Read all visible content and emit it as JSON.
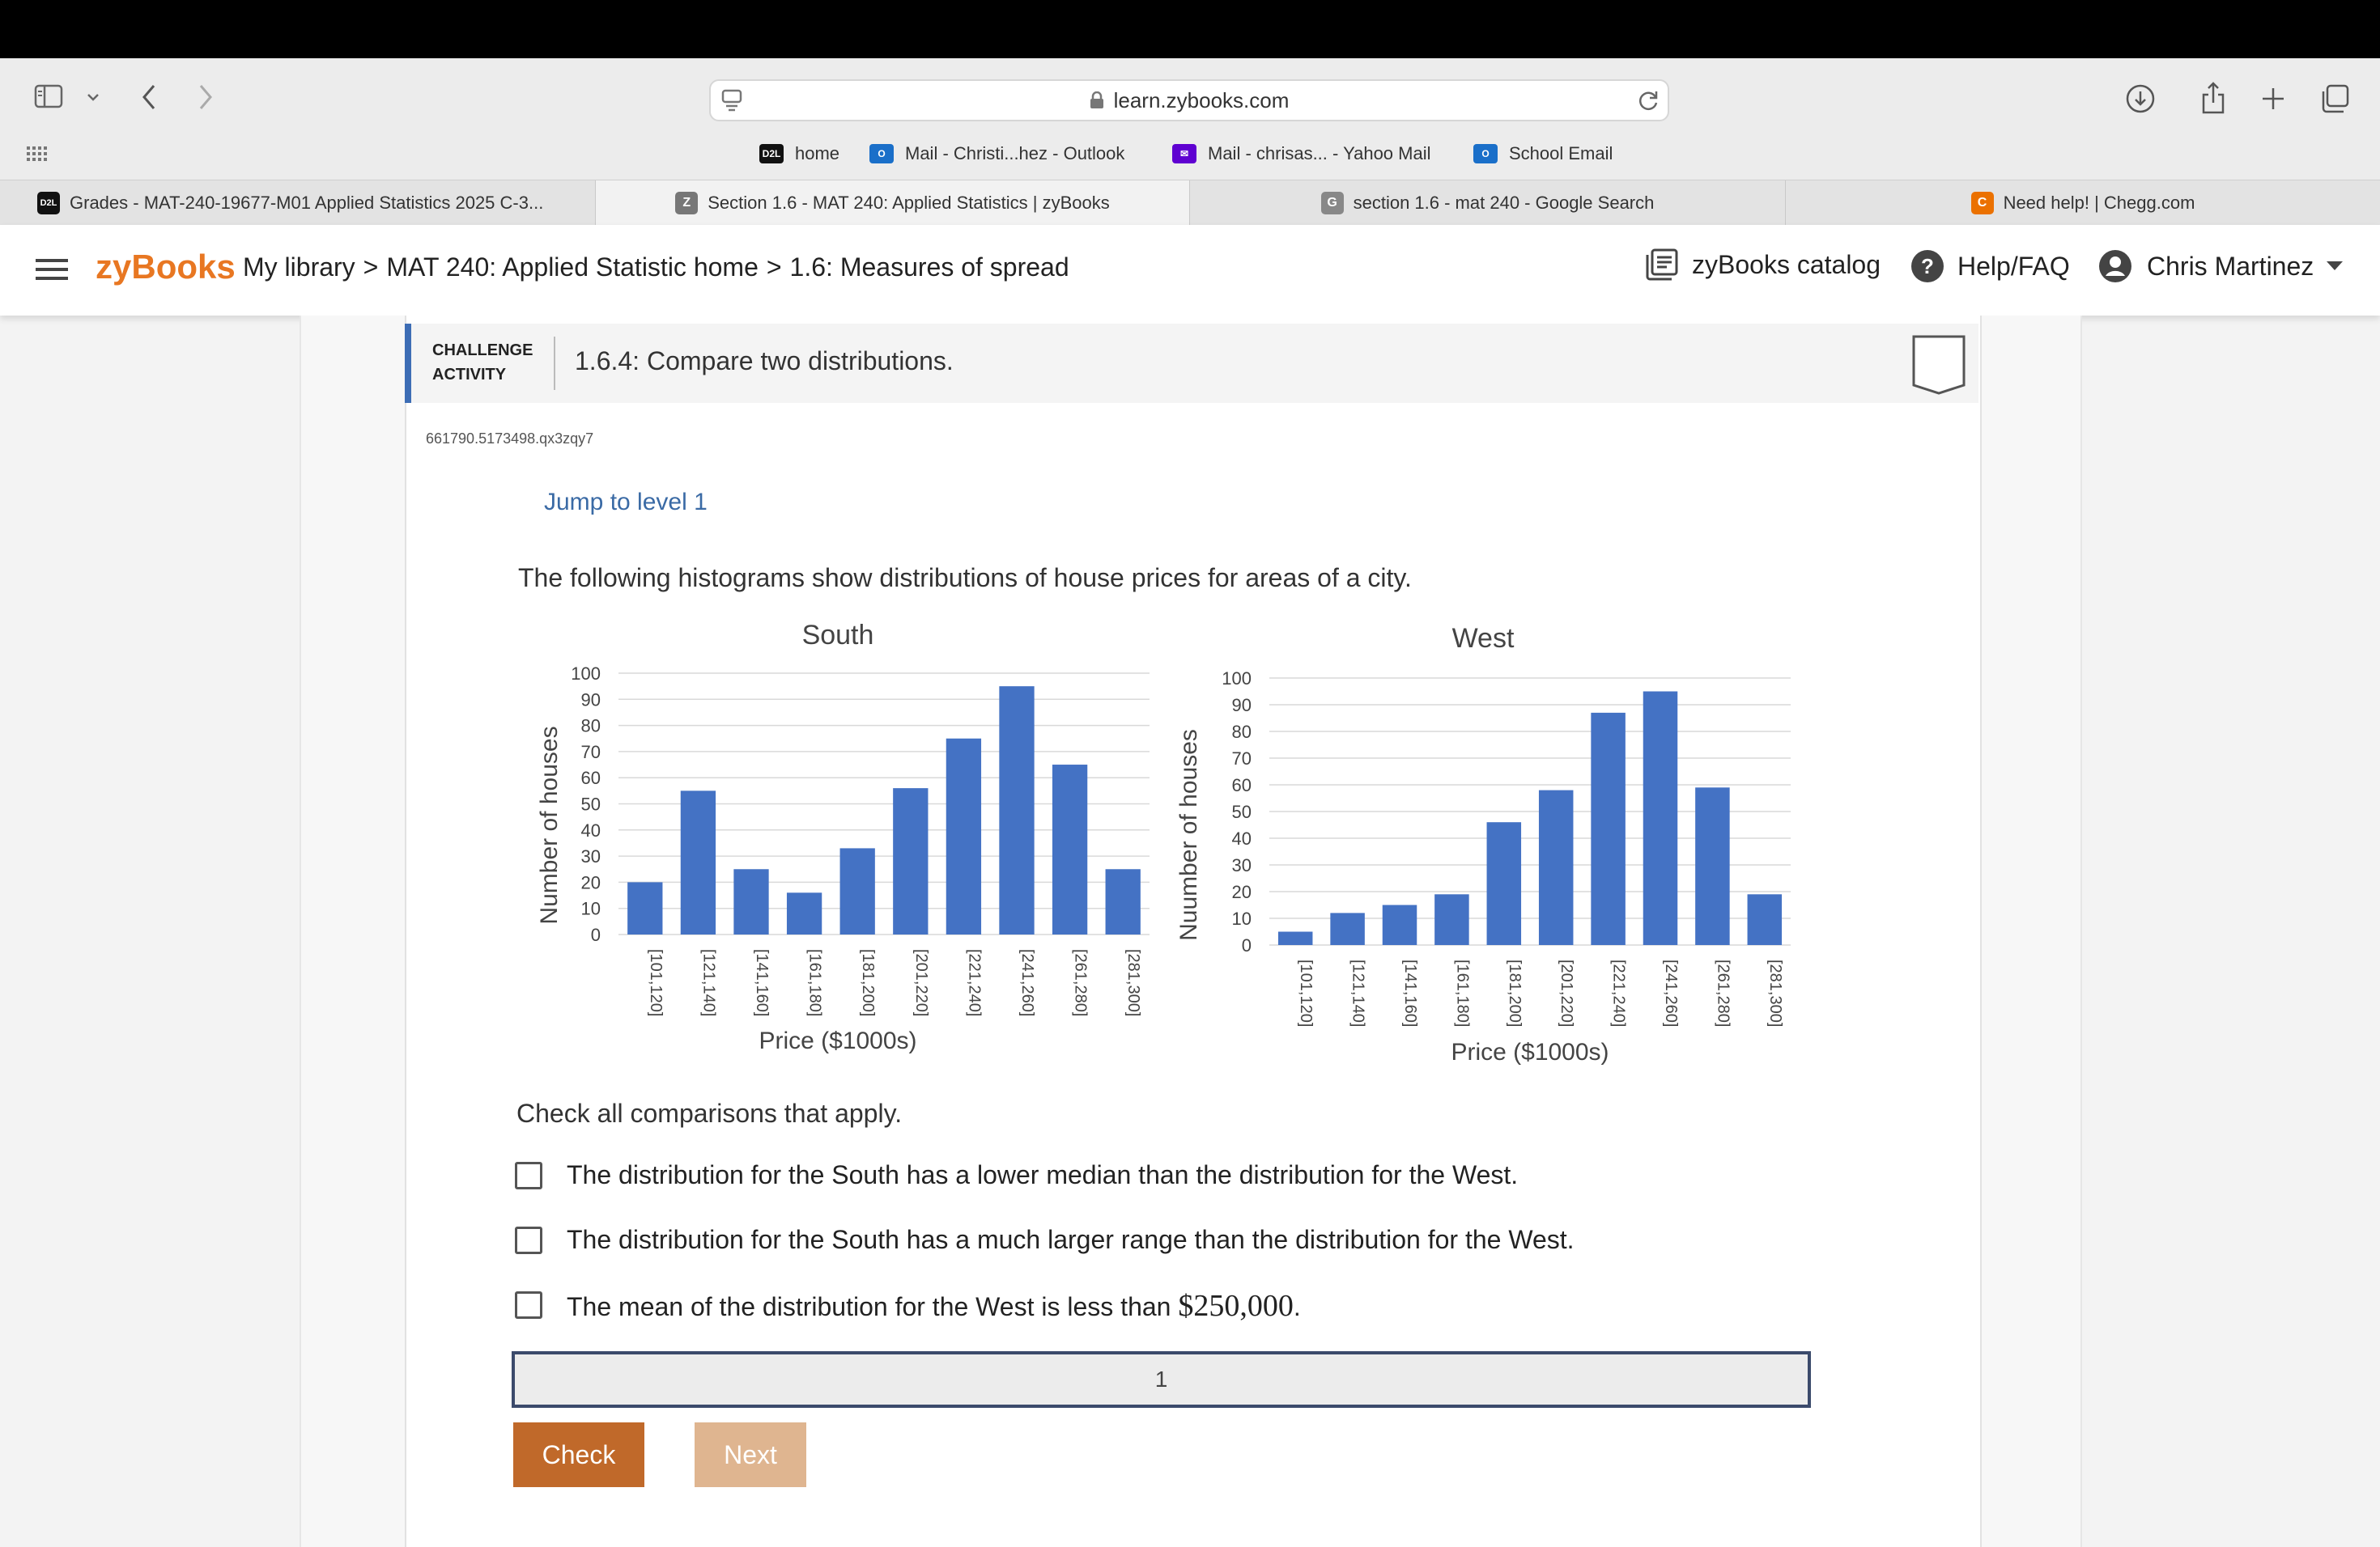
{
  "browser": {
    "address": "learn.zybooks.com",
    "favorites": [
      {
        "badge": "D2L",
        "label": "home"
      },
      {
        "badge": "O",
        "label": "Mail - Christi...hez - Outlook"
      },
      {
        "badge": "✉",
        "label": "Mail - chrisas... - Yahoo Mail"
      },
      {
        "badge": "O",
        "label": "School Email"
      }
    ],
    "tabs": [
      {
        "badge": "D2L",
        "label": "Grades - MAT-240-19677-M01 Applied Statistics 2025 C-3..."
      },
      {
        "badge": "Z",
        "label": "Section 1.6 - MAT 240: Applied Statistics | zyBooks"
      },
      {
        "badge": "G",
        "label": "section 1.6 - mat 240 - Google Search"
      },
      {
        "badge": "C",
        "label": "Need help!  | Chegg.com"
      }
    ]
  },
  "header": {
    "logo": "zyBooks",
    "breadcrumb_library": "My library",
    "sep": ">",
    "breadcrumb_course": "MAT 240: Applied Statistic home",
    "breadcrumb_section": "1.6: Measures of spread",
    "catalog": "zyBooks catalog",
    "help": "Help/FAQ",
    "user": "Chris Martinez"
  },
  "activity": {
    "kind_line1": "CHALLENGE",
    "kind_line2": "ACTIVITY",
    "title": "1.6.4: Compare two distributions.",
    "id": "661790.5173498.qx3zqy7",
    "jump": "Jump to level 1",
    "prompt": "The following histograms show distributions of house prices for areas of a city.",
    "check_all": "Check all comparisons that apply.",
    "options": [
      {
        "text": "The distribution for the South has a lower median than the distribution for the West.",
        "checked": false
      },
      {
        "text": "The distribution for the South has a much larger range than the distribution for the West.",
        "checked": false
      },
      {
        "text": "The mean of the distribution for the West is less than ",
        "math": "$250,000",
        "end": ".",
        "checked": false
      }
    ],
    "level": "1",
    "check_button": "Check",
    "next_button": "Next"
  },
  "chart_data": [
    {
      "type": "bar",
      "title": "South",
      "xlabel": "Price ($1000s)",
      "ylabel": "Number of houses",
      "ylim": [
        0,
        100
      ],
      "yticks": [
        0,
        10,
        20,
        30,
        40,
        50,
        60,
        70,
        80,
        90,
        100
      ],
      "categories": [
        "[101,120]",
        "[121,140]",
        "[141,160]",
        "[161,180]",
        "[181,200]",
        "[201,220]",
        "[221,240]",
        "[241,260]",
        "[261,280]",
        "[281,300]"
      ],
      "values": [
        20,
        55,
        25,
        16,
        33,
        56,
        75,
        95,
        65,
        25
      ],
      "color": "#4472c4",
      "grid": true
    },
    {
      "type": "bar",
      "title": "West",
      "xlabel": "Price ($1000s)",
      "ylabel": "Nuumber of houses",
      "ylim": [
        0,
        100
      ],
      "yticks": [
        0,
        10,
        20,
        30,
        40,
        50,
        60,
        70,
        80,
        90,
        100
      ],
      "categories": [
        "[101,120]",
        "[121,140]",
        "[141,160]",
        "[161,180]",
        "[181,200]",
        "[201,220]",
        "[221,240]",
        "[241,260]",
        "[261,280]",
        "[281,300]"
      ],
      "values": [
        5,
        12,
        15,
        19,
        46,
        58,
        87,
        95,
        59,
        19
      ],
      "color": "#4472c4",
      "grid": true
    }
  ],
  "colors": {
    "accent": "#e87722",
    "check_button": "#c0692a",
    "next_button": "#dfb590",
    "activity_border": "#3d6db5",
    "link": "#3a6aa5"
  }
}
